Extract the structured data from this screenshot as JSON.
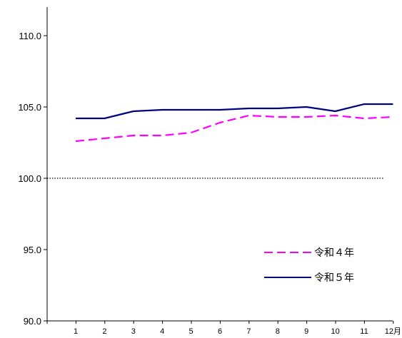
{
  "chart_data": {
    "type": "line",
    "categories": [
      "1",
      "2",
      "3",
      "4",
      "5",
      "6",
      "7",
      "8",
      "9",
      "10",
      "11",
      "12月"
    ],
    "series": [
      {
        "name": "令和４年",
        "color": "#ff00ff",
        "dash": true,
        "values": [
          102.6,
          102.8,
          103.0,
          103.0,
          103.2,
          103.9,
          104.4,
          104.3,
          104.3,
          104.4,
          104.2,
          104.3
        ]
      },
      {
        "name": "令和５年",
        "color": "#000080",
        "dash": false,
        "values": [
          104.2,
          104.2,
          104.7,
          104.8,
          104.8,
          104.8,
          104.9,
          104.9,
          105.0,
          104.7,
          105.2,
          105.2
        ]
      }
    ],
    "yticks": [
      "90.0",
      "95.0",
      "100.0",
      "105.0",
      "110.0"
    ],
    "ylim": [
      90,
      112
    ],
    "reference_line": 100,
    "title": "",
    "xlabel": "",
    "ylabel": "",
    "legend_position": "bottom-right"
  }
}
